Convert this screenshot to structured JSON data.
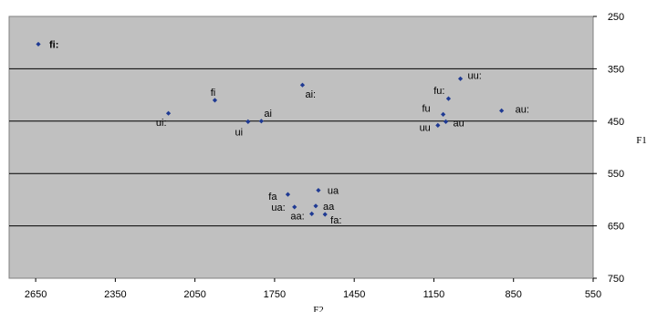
{
  "chart_data": {
    "type": "scatter",
    "title": "",
    "xlabel": "F2",
    "ylabel": "F1",
    "xlim": [
      2750,
      550
    ],
    "ylim": [
      750,
      250
    ],
    "x_reversed": true,
    "y_reversed": true,
    "x_ticks": [
      "2650",
      "2350",
      "2050",
      "1750",
      "1450",
      "1150",
      "850",
      "550"
    ],
    "y_ticks": [
      "250",
      "350",
      "450",
      "550",
      "650",
      "750"
    ],
    "grid": true,
    "legend": "none",
    "colors": {
      "plot_background": "#c0c0c0",
      "marker": "#1f3a93",
      "gridline": "#000000"
    },
    "points": [
      {
        "label": "fi:",
        "x": 2640,
        "y": 303,
        "bold": true
      },
      {
        "label": "ui:",
        "x": 2150,
        "y": 435
      },
      {
        "label": "fi",
        "x": 1975,
        "y": 410
      },
      {
        "label": "ui",
        "x": 1850,
        "y": 451
      },
      {
        "label": "ai",
        "x": 1800,
        "y": 450
      },
      {
        "label": "ai:",
        "x": 1645,
        "y": 381
      },
      {
        "label": "uu:",
        "x": 1050,
        "y": 369
      },
      {
        "label": "fu:",
        "x": 1095,
        "y": 407
      },
      {
        "label": "au:",
        "x": 895,
        "y": 430
      },
      {
        "label": "fu",
        "x": 1115,
        "y": 437
      },
      {
        "label": "au",
        "x": 1105,
        "y": 451
      },
      {
        "label": "uu",
        "x": 1135,
        "y": 458
      },
      {
        "label": "ua",
        "x": 1585,
        "y": 582
      },
      {
        "label": "fa",
        "x": 1700,
        "y": 590
      },
      {
        "label": "ua:",
        "x": 1675,
        "y": 614
      },
      {
        "label": "aa",
        "x": 1595,
        "y": 612
      },
      {
        "label": "aa:",
        "x": 1610,
        "y": 627
      },
      {
        "label": "fa:",
        "x": 1560,
        "y": 628
      }
    ]
  }
}
